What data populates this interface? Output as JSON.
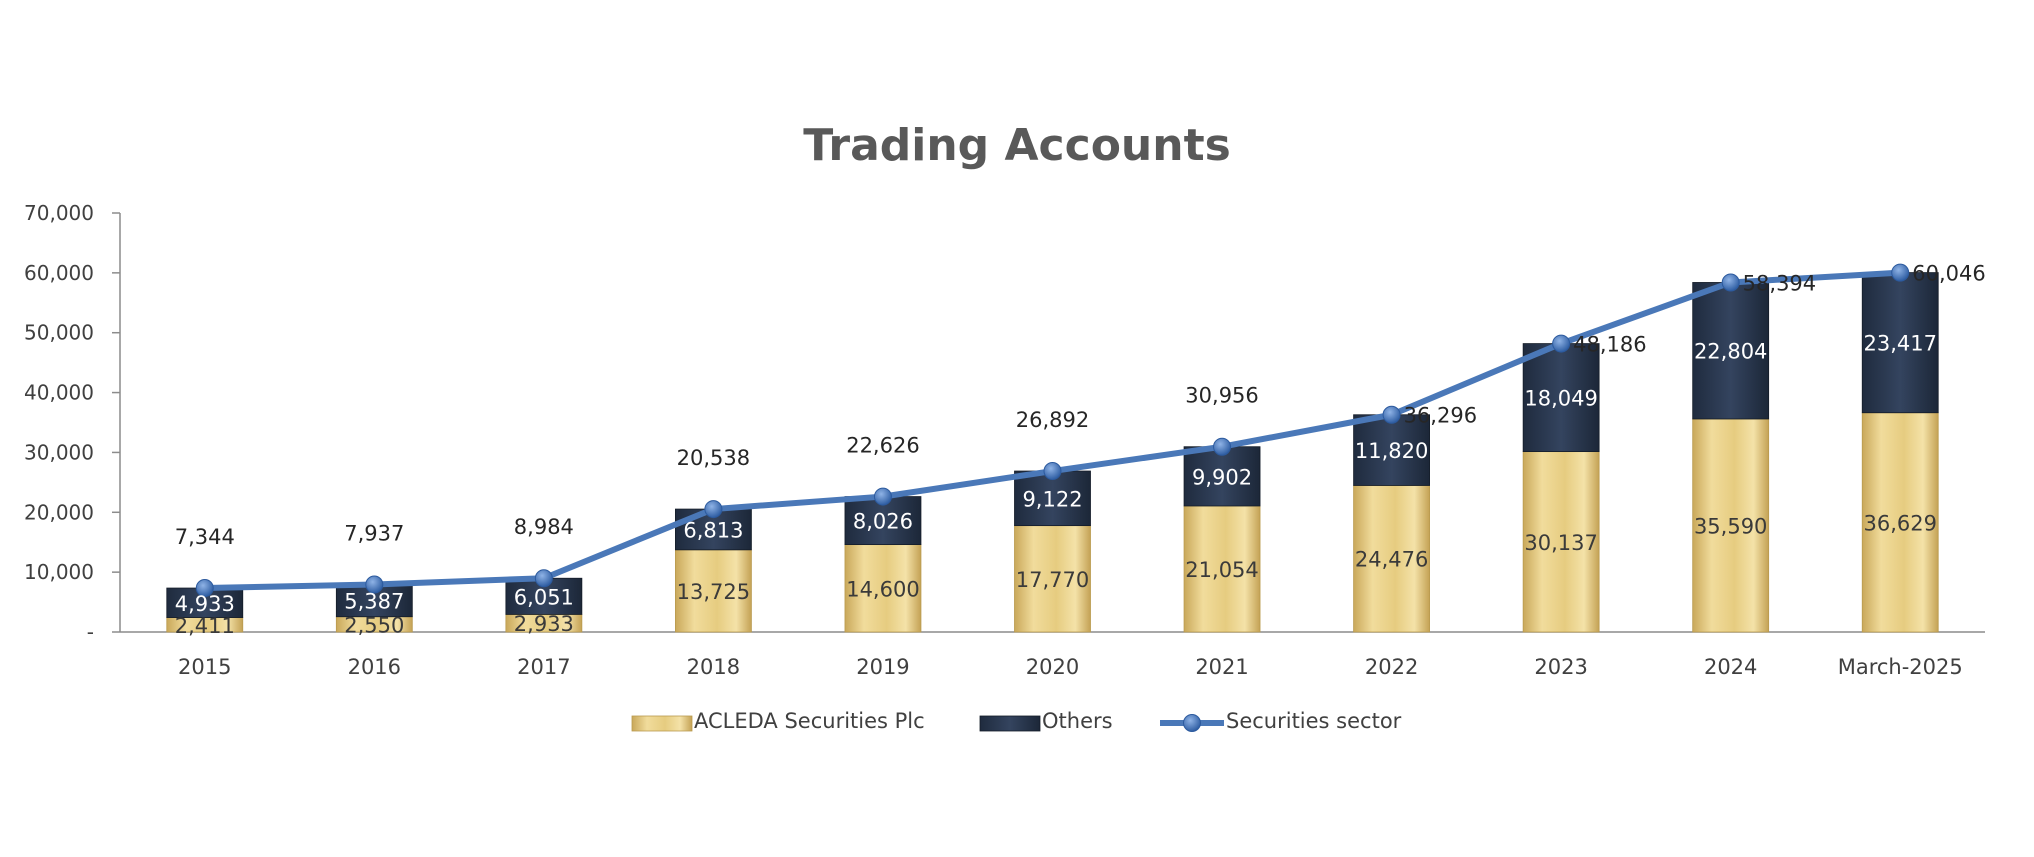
{
  "chart_data": {
    "type": "bar",
    "stacked": true,
    "title": "Trading Accounts",
    "categories": [
      "2015",
      "2016",
      "2017",
      "2018",
      "2019",
      "2020",
      "2021",
      "2022",
      "2023",
      "2024",
      "March-2025"
    ],
    "series": [
      {
        "name": "ACLEDA Securities Plc",
        "kind": "bar",
        "color": "#e3c87a",
        "values": [
          2411,
          2550,
          2933,
          13725,
          14600,
          17770,
          21054,
          24476,
          30137,
          35590,
          36629
        ],
        "labels": [
          "2,411",
          "2,550",
          "2,933",
          "13,725",
          "14,600",
          "17,770",
          "21,054",
          "24,476",
          "30,137",
          "35,590",
          "36,629"
        ]
      },
      {
        "name": "Others",
        "kind": "bar",
        "color": "#2b3a52",
        "values": [
          4933,
          5387,
          6051,
          6813,
          8026,
          9122,
          9902,
          11820,
          18049,
          22804,
          23417
        ],
        "labels": [
          "4,933",
          "5,387",
          "6,051",
          "6,813",
          "8,026",
          "9,122",
          "9,902",
          "11,820",
          "18,049",
          "22,804",
          "23,417"
        ]
      },
      {
        "name": "Securities sector",
        "kind": "line",
        "color": "#4a78b8",
        "values": [
          7344,
          7937,
          8984,
          20538,
          22626,
          26892,
          30956,
          36296,
          48186,
          58394,
          60046
        ],
        "labels": [
          "7,344",
          "7,937",
          "8,984",
          "20,538",
          "22,626",
          "26,892",
          "30,956",
          "36,296",
          "48,186",
          "58,394",
          "60,046"
        ]
      }
    ],
    "ylim": [
      0,
      70000
    ],
    "yticks": [
      0,
      10000,
      20000,
      30000,
      40000,
      50000,
      60000,
      70000
    ],
    "ytick_labels": [
      "-",
      "10,000",
      "20,000",
      "30,000",
      "40,000",
      "50,000",
      "60,000",
      "70,000"
    ],
    "xlabel": "",
    "ylabel": "",
    "grid": false,
    "legend_position": "bottom"
  }
}
